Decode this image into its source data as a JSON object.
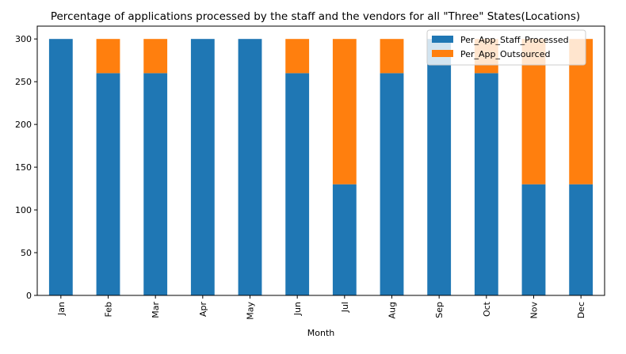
{
  "chart_data": {
    "type": "bar",
    "stacked": true,
    "title": "Percentage of applications processed by the staff and the vendors for all \"Three\" States(Locations)",
    "xlabel": "Month",
    "ylabel": "",
    "categories": [
      "Jan",
      "Feb",
      "Mar",
      "Apr",
      "May",
      "Jun",
      "Jul",
      "Aug",
      "Sep",
      "Oct",
      "Nov",
      "Dec"
    ],
    "series": [
      {
        "name": "Per_App_Staff_Processed",
        "color": "#1f77b4",
        "values": [
          300,
          260,
          260,
          300,
          300,
          260,
          130,
          260,
          300,
          260,
          130,
          130
        ]
      },
      {
        "name": "Per_App_Outsourced",
        "color": "#ff7f0e",
        "values": [
          0,
          40,
          40,
          0,
          0,
          40,
          170,
          40,
          0,
          40,
          170,
          170
        ]
      }
    ],
    "ylim": [
      0,
      315
    ],
    "yticks": [
      0,
      50,
      100,
      150,
      200,
      250,
      300
    ],
    "grid": false,
    "legend_position": "top-right"
  }
}
